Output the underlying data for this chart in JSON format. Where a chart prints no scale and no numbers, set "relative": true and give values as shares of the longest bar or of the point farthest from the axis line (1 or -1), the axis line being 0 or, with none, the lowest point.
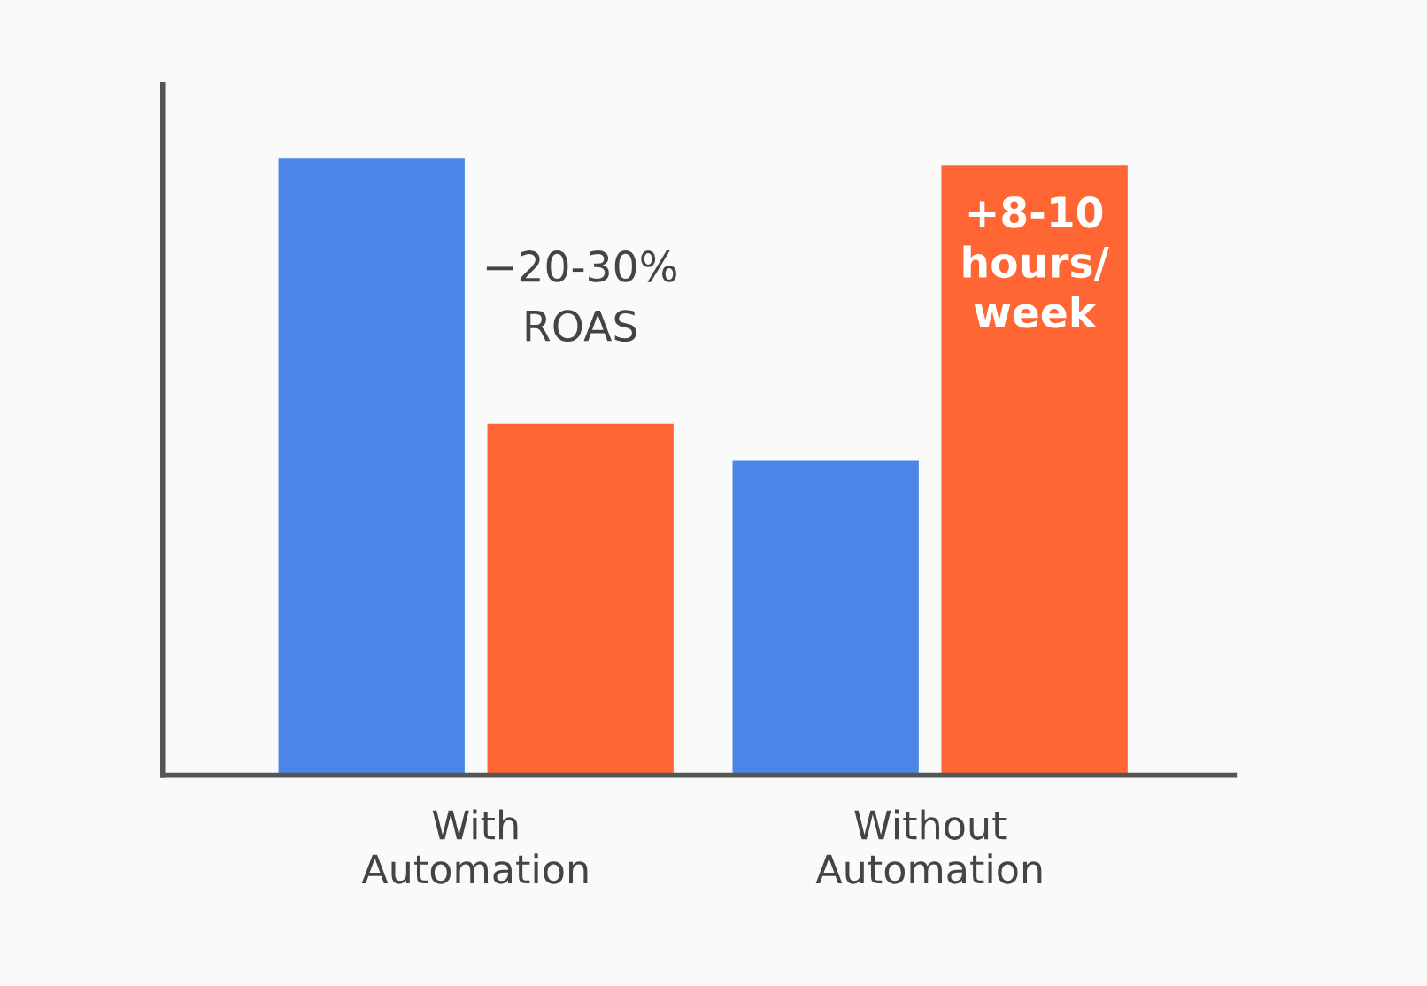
{
  "chart_data": {
    "type": "bar",
    "relative": true,
    "categories": [
      "With\nAutomation",
      "Without\nAutomation"
    ],
    "series": [
      {
        "color": "#4a86e8",
        "values": [
          1,
          0.51
        ]
      },
      {
        "color": "#ff6633",
        "values": [
          0.57,
          0.99
        ]
      }
    ],
    "annotations": [
      "−20-30%\nROAS",
      "+8-10\nhours/\nweek"
    ]
  }
}
